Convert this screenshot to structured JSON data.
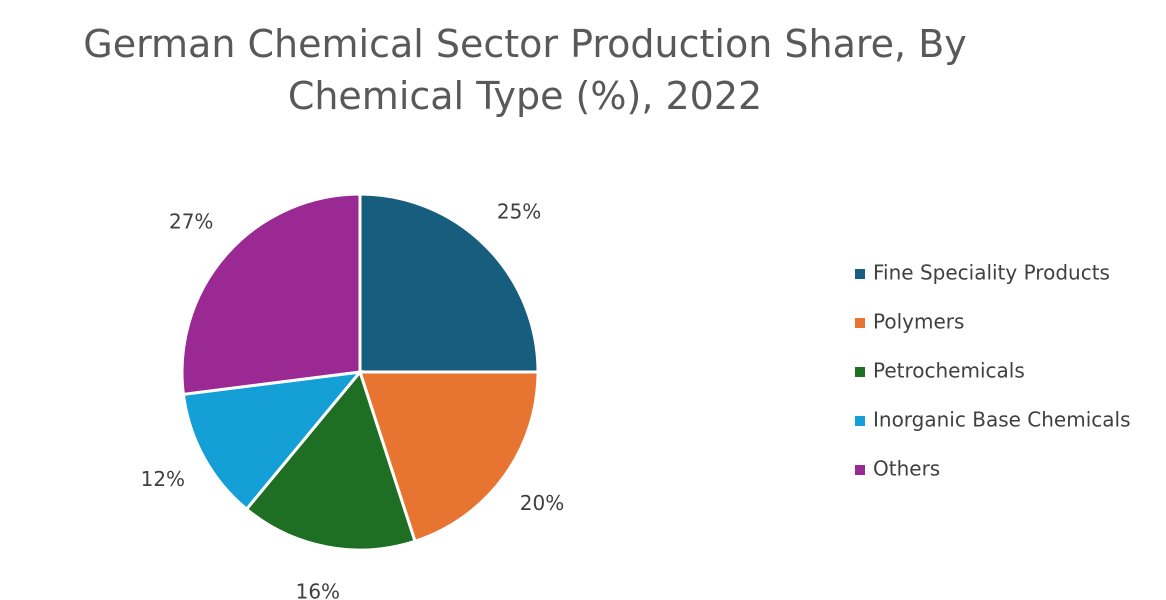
{
  "chart_data": {
    "type": "pie",
    "title": "German Chemical Sector Production Share, By Chemical Type (%), 2022",
    "categories": [
      "Fine Speciality Products",
      "Polymers",
      "Petrochemicals",
      "Inorganic Base Chemicals",
      "Others"
    ],
    "values": [
      25,
      20,
      16,
      12,
      27
    ],
    "value_labels": [
      "25%",
      "20%",
      "16%",
      "12%",
      "27%"
    ],
    "colors": [
      "#175e7e",
      "#e87432",
      "#1e6e23",
      "#14a0d6",
      "#9b2993"
    ],
    "legend": "right"
  }
}
